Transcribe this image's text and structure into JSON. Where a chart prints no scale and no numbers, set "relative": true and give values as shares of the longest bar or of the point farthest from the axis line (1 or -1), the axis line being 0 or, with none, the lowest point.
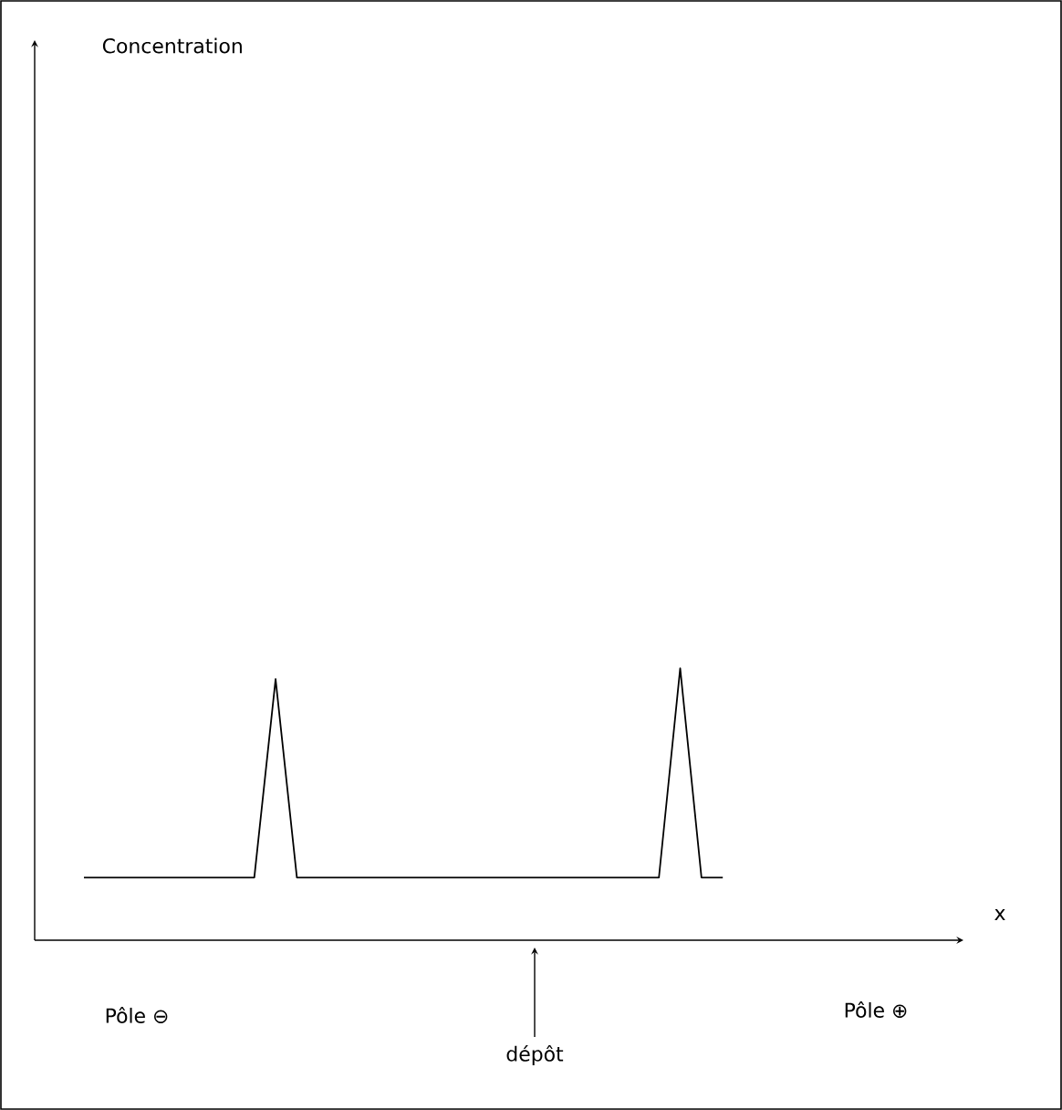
{
  "chart_data": {
    "type": "line",
    "relative": true,
    "color": "#000000",
    "categories": [
      null,
      null,
      null,
      null,
      null,
      null,
      null,
      null,
      null,
      null,
      null,
      null,
      null,
      null,
      null,
      null,
      null,
      null,
      null,
      null,
      null,
      null,
      null,
      null,
      null,
      null,
      null,
      null,
      null,
      null,
      null
    ],
    "values": [
      0.23,
      0.23,
      0.23,
      0.23,
      0.23,
      0.23,
      0.23,
      0.23,
      0.23,
      0.96,
      0.23,
      0.23,
      0.23,
      0.23,
      0.23,
      0.23,
      0.23,
      0.23,
      0.23,
      0.23,
      0.23,
      0.23,
      0.23,
      0.23,
      0.23,
      0.23,
      0.23,
      0.23,
      1,
      0.23,
      0.23
    ],
    "annotations": [
      "Concentration",
      "x",
      "Pôle ⊖",
      "dépôt",
      "Pôle ⊕"
    ]
  }
}
